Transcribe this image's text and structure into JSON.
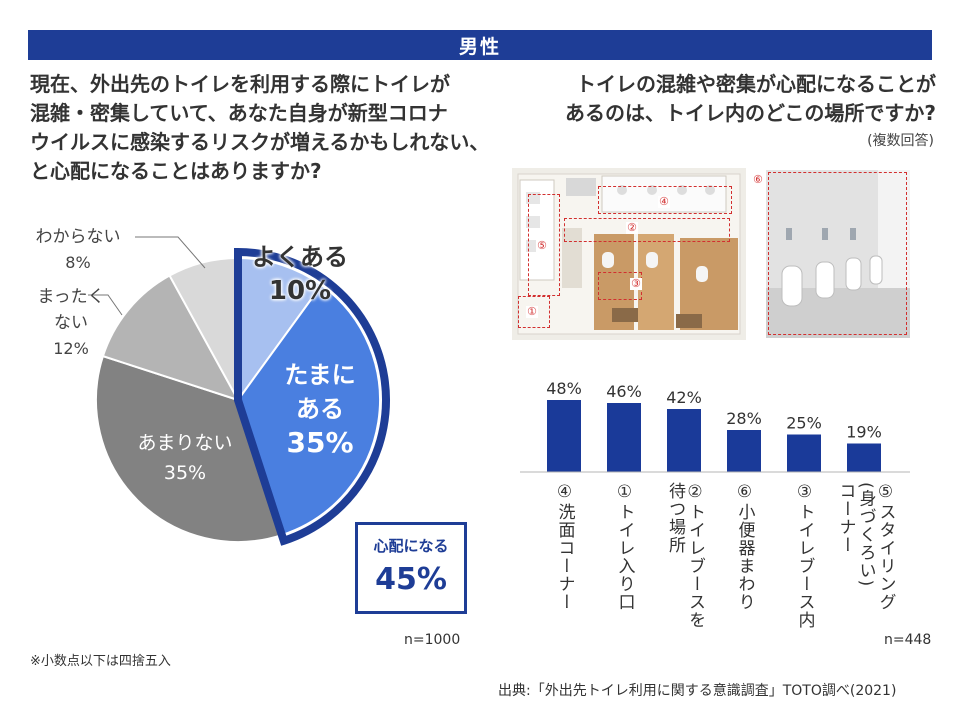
{
  "header": {
    "title": "男性"
  },
  "left_question": {
    "lines": [
      "現在、外出先のトイレを利用する際にトイレが",
      "混雑・密集していて、あなた自身が新型コロナ",
      "ウイルスに感染するリスクが増えるかもしれない、",
      "と心配になることはありますか?"
    ]
  },
  "right_question": {
    "lines": [
      "トイレの混雑や密集が心配になることが",
      "あるのは、トイレ内のどこの場所ですか?"
    ],
    "note": "(複数回答)"
  },
  "pie_labels": {
    "often": {
      "text": "よくある",
      "pct": "10%"
    },
    "sometimes": {
      "line1": "たまに",
      "line2": "ある",
      "pct": "35%"
    },
    "rarely": {
      "text": "あまりない",
      "pct": "35%"
    },
    "never": {
      "line1": "まったく",
      "line2": "ない",
      "pct": "12%"
    },
    "unknown": {
      "text": "わからない",
      "pct": "8%"
    }
  },
  "summary": {
    "label": "心配になる",
    "value": "45%"
  },
  "n_left": "n=1000",
  "footnote": "※小数点以下は四捨五入",
  "n_right": "n=448",
  "source": "出典:「外出先トイレ利用に関する意識調査」TOTO調べ(2021)",
  "photo_markers": {
    "m1": "①",
    "m2": "②",
    "m3": "③",
    "m4": "④",
    "m5": "⑤",
    "m6": "⑥"
  },
  "colors": {
    "navy": "#1e3d96",
    "blue": "#4a7fe0",
    "light_blue": "#a7c0f0",
    "dark_gray": "#828282",
    "mid_gray": "#b4b4b4",
    "light_gray": "#d9d9d9",
    "bar": "#1a3a99"
  },
  "chart_data": [
    {
      "type": "pie",
      "slices": [
        {
          "label": "よくある",
          "value": 10
        },
        {
          "label": "たまにある",
          "value": 35
        },
        {
          "label": "あまりない",
          "value": 35
        },
        {
          "label": "まったくない",
          "value": 12
        },
        {
          "label": "わからない",
          "value": 8
        }
      ],
      "highlight": {
        "label": "心配になる",
        "value": 45
      },
      "unit": "%"
    },
    {
      "type": "bar",
      "categories": [
        "④洗面コーナー",
        "①トイレ入り口",
        "②トイレブースを待つ場所",
        "⑥小便器まわり",
        "③トイレブース内",
        "⑤スタイリング(身づくろい)コーナー"
      ],
      "values": [
        48,
        46,
        42,
        28,
        25,
        19
      ],
      "value_labels": [
        "48%",
        "46%",
        "42%",
        "28%",
        "25%",
        "19%"
      ],
      "label_lines": [
        [
          "④洗面コーナー"
        ],
        [
          "①トイレ入り口"
        ],
        [
          "②トイレブースを",
          "待つ場所"
        ],
        [
          "⑥小便器まわり"
        ],
        [
          "③トイレブース内"
        ],
        [
          "⑤スタイリング",
          "(身づくろい)",
          "コーナー"
        ]
      ],
      "unit": "%"
    }
  ]
}
